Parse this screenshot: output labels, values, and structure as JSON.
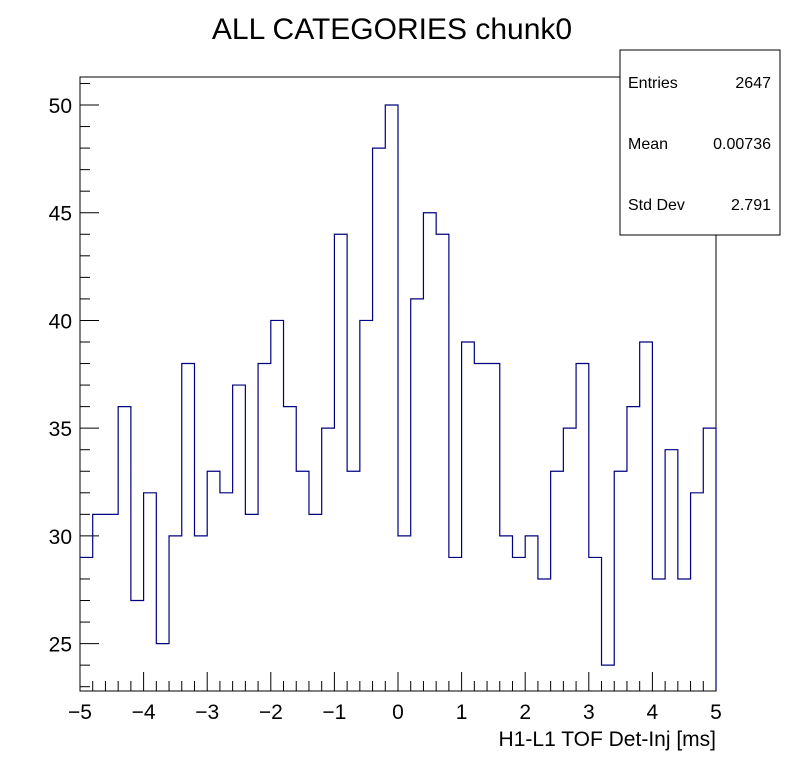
{
  "chart_data": {
    "type": "histogram",
    "title": "ALL CATEGORIES chunk0",
    "xlabel": "H1-L1 TOF Det-Inj [ms]",
    "ylabel": "",
    "xlim": [
      -5,
      5
    ],
    "ylim": [
      22.8,
      51.3
    ],
    "bin_width": 0.2,
    "bin_edges_start": -5,
    "x_ticks": [
      -5,
      -4,
      -3,
      -2,
      -1,
      0,
      1,
      2,
      3,
      4,
      5
    ],
    "x_tick_labels": [
      "−5",
      "−4",
      "−3",
      "−2",
      "−1",
      "0",
      "1",
      "2",
      "3",
      "4",
      "5"
    ],
    "y_ticks": [
      25,
      30,
      35,
      40,
      45,
      50
    ],
    "y_tick_labels": [
      "25",
      "30",
      "35",
      "40",
      "45",
      "50"
    ],
    "values": [
      29,
      31,
      31,
      36,
      27,
      32,
      25,
      30,
      38,
      30,
      33,
      32,
      37,
      31,
      38,
      40,
      36,
      33,
      31,
      35,
      44,
      33,
      40,
      48,
      50,
      30,
      41,
      45,
      44,
      29,
      39,
      38,
      38,
      30,
      29,
      30,
      28,
      33,
      35,
      38,
      29,
      24,
      33,
      36,
      39,
      28,
      34,
      28,
      32,
      35
    ],
    "line_color": "#000080",
    "grid": false,
    "stats_box": {
      "position": "top-right",
      "rows": [
        {
          "label": "Entries",
          "value": "2647"
        },
        {
          "label": "Mean",
          "value": "0.00736"
        },
        {
          "label": "Std Dev",
          "value": "2.791"
        }
      ]
    }
  }
}
